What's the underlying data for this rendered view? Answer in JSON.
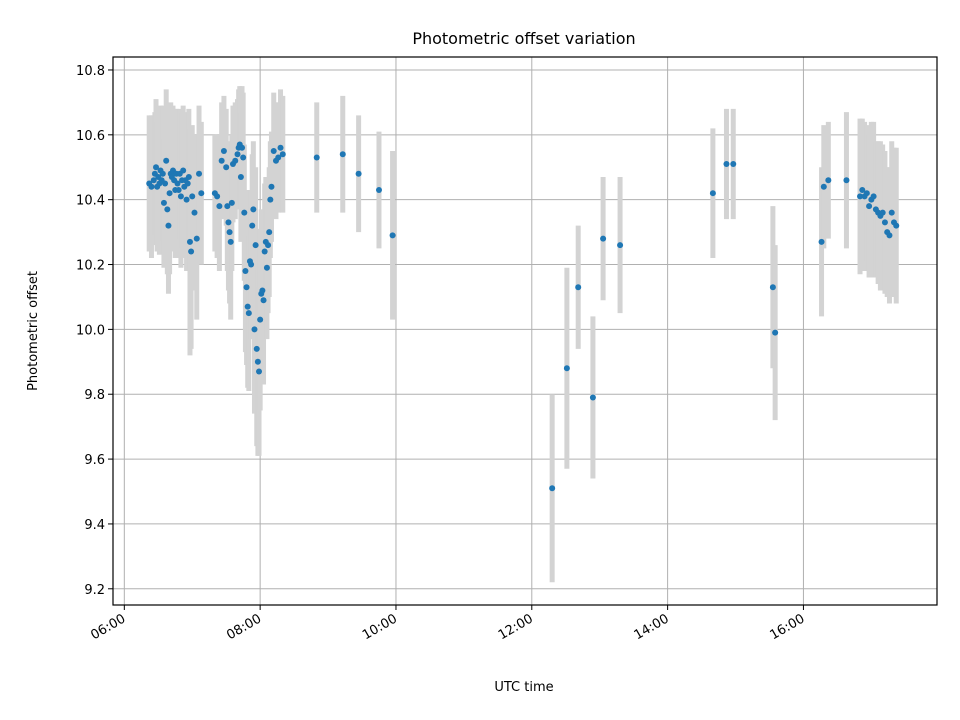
{
  "chart_data": {
    "type": "scatter",
    "title": "Photometric offset variation",
    "xlabel": "UTC time",
    "ylabel": "Photometric offset",
    "x_unit": "hours (UTC)",
    "xlim": [
      "05:50",
      "17:58"
    ],
    "ylim": [
      9.15,
      10.84
    ],
    "x_ticks": [
      "06:00",
      "08:00",
      "10:00",
      "12:00",
      "14:00",
      "16:00"
    ],
    "y_ticks": [
      "9.2",
      "9.4",
      "9.6",
      "9.8",
      "10.0",
      "10.2",
      "10.4",
      "10.6",
      "10.8"
    ],
    "grid": true,
    "colors": {
      "points": "#1f77b4",
      "errorbars": "#d3d3d3"
    },
    "series": [
      {
        "x": [
          "06:22",
          "06:24",
          "06:26",
          "06:27",
          "06:28",
          "06:29",
          "06:30",
          "06:31",
          "06:32",
          "06:33",
          "06:34",
          "06:35",
          "06:36",
          "06:37",
          "06:38",
          "06:39",
          "06:40",
          "06:41",
          "06:42",
          "06:43",
          "06:44",
          "06:45",
          "06:46",
          "06:47",
          "06:48",
          "06:49",
          "06:50",
          "06:51",
          "06:52",
          "06:53",
          "06:54",
          "06:55",
          "06:56",
          "06:57",
          "06:58",
          "06:59",
          "07:00",
          "07:02",
          "07:04",
          "07:06",
          "07:08",
          "07:20",
          "07:22",
          "07:24",
          "07:26",
          "07:28",
          "07:30",
          "07:31",
          "07:32",
          "07:33",
          "07:34",
          "07:35",
          "07:36",
          "07:38",
          "07:40",
          "07:41",
          "07:42",
          "07:43",
          "07:44",
          "07:45",
          "07:46",
          "07:47",
          "07:48",
          "07:49",
          "07:50",
          "07:51",
          "07:52",
          "07:53",
          "07:54",
          "07:55",
          "07:56",
          "07:57",
          "07:58",
          "07:59",
          "08:00",
          "08:01",
          "08:02",
          "08:03",
          "08:04",
          "08:05",
          "08:06",
          "08:07",
          "08:08",
          "08:09",
          "08:10",
          "08:12",
          "08:14",
          "08:16",
          "08:18",
          "08:20",
          "08:50",
          "09:13",
          "09:27",
          "09:45",
          "09:57",
          "12:18",
          "12:31",
          "12:41",
          "12:54",
          "13:03",
          "13:18",
          "14:40",
          "14:52",
          "14:58",
          "15:33",
          "15:35",
          "16:16",
          "16:18",
          "16:22",
          "16:38",
          "16:50",
          "16:52",
          "16:54",
          "16:56",
          "16:58",
          "17:00",
          "17:02",
          "17:04",
          "17:06",
          "17:08",
          "17:10",
          "17:12",
          "17:14",
          "17:16",
          "17:18",
          "17:20",
          "17:22"
        ],
        "y": [
          10.45,
          10.44,
          10.46,
          10.48,
          10.5,
          10.44,
          10.47,
          10.45,
          10.49,
          10.46,
          10.48,
          10.39,
          10.45,
          10.52,
          10.37,
          10.32,
          10.42,
          10.48,
          10.47,
          10.49,
          10.46,
          10.43,
          10.48,
          10.45,
          10.43,
          10.48,
          10.41,
          10.46,
          10.49,
          10.44,
          10.46,
          10.4,
          10.45,
          10.47,
          10.27,
          10.24,
          10.41,
          10.36,
          10.28,
          10.48,
          10.42,
          10.42,
          10.41,
          10.38,
          10.52,
          10.55,
          10.5,
          10.38,
          10.33,
          10.3,
          10.27,
          10.39,
          10.51,
          10.52,
          10.54,
          10.56,
          10.57,
          10.47,
          10.56,
          10.53,
          10.36,
          10.18,
          10.13,
          10.07,
          10.05,
          10.21,
          10.2,
          10.32,
          10.37,
          10.0,
          10.26,
          9.94,
          9.9,
          9.87,
          10.03,
          10.11,
          10.12,
          10.09,
          10.24,
          10.27,
          10.19,
          10.26,
          10.3,
          10.4,
          10.44,
          10.55,
          10.52,
          10.53,
          10.56,
          10.54,
          10.53,
          10.54,
          10.48,
          10.43,
          10.29,
          9.51,
          9.88,
          10.13,
          9.79,
          10.28,
          10.26,
          10.42,
          10.51,
          10.51,
          10.13,
          9.99,
          10.27,
          10.44,
          10.46,
          10.46,
          10.41,
          10.43,
          10.41,
          10.42,
          10.38,
          10.4,
          10.41,
          10.37,
          10.36,
          10.35,
          10.36,
          10.33,
          10.3,
          10.29,
          10.36,
          10.33,
          10.32
        ],
        "yerr": [
          0.21,
          0.22,
          0.2,
          0.19,
          0.21,
          0.2,
          0.21,
          0.22,
          0.2,
          0.19,
          0.21,
          0.2,
          0.23,
          0.22,
          0.2,
          0.21,
          0.25,
          0.22,
          0.21,
          0.2,
          0.22,
          0.21,
          0.2,
          0.22,
          0.21,
          0.2,
          0.22,
          0.21,
          0.2,
          0.22,
          0.21,
          0.22,
          0.2,
          0.21,
          0.35,
          0.3,
          0.22,
          0.24,
          0.25,
          0.21,
          0.22,
          0.18,
          0.19,
          0.2,
          0.18,
          0.17,
          0.18,
          0.2,
          0.21,
          0.22,
          0.24,
          0.21,
          0.18,
          0.18,
          0.17,
          0.18,
          0.18,
          0.2,
          0.19,
          0.2,
          0.21,
          0.25,
          0.24,
          0.25,
          0.24,
          0.22,
          0.23,
          0.22,
          0.21,
          0.26,
          0.24,
          0.3,
          0.29,
          0.26,
          0.28,
          0.26,
          0.25,
          0.26,
          0.21,
          0.2,
          0.22,
          0.21,
          0.2,
          0.18,
          0.17,
          0.18,
          0.18,
          0.17,
          0.18,
          0.18,
          0.17,
          0.18,
          0.18,
          0.18,
          0.26,
          0.29,
          0.31,
          0.19,
          0.25,
          0.19,
          0.21,
          0.2,
          0.17,
          0.17,
          0.25,
          0.27,
          0.23,
          0.19,
          0.18,
          0.21,
          0.24,
          0.22,
          0.23,
          0.21,
          0.22,
          0.24,
          0.23,
          0.21,
          0.22,
          0.23,
          0.21,
          0.22,
          0.2,
          0.21,
          0.22,
          0.23,
          0.24
        ]
      }
    ]
  }
}
